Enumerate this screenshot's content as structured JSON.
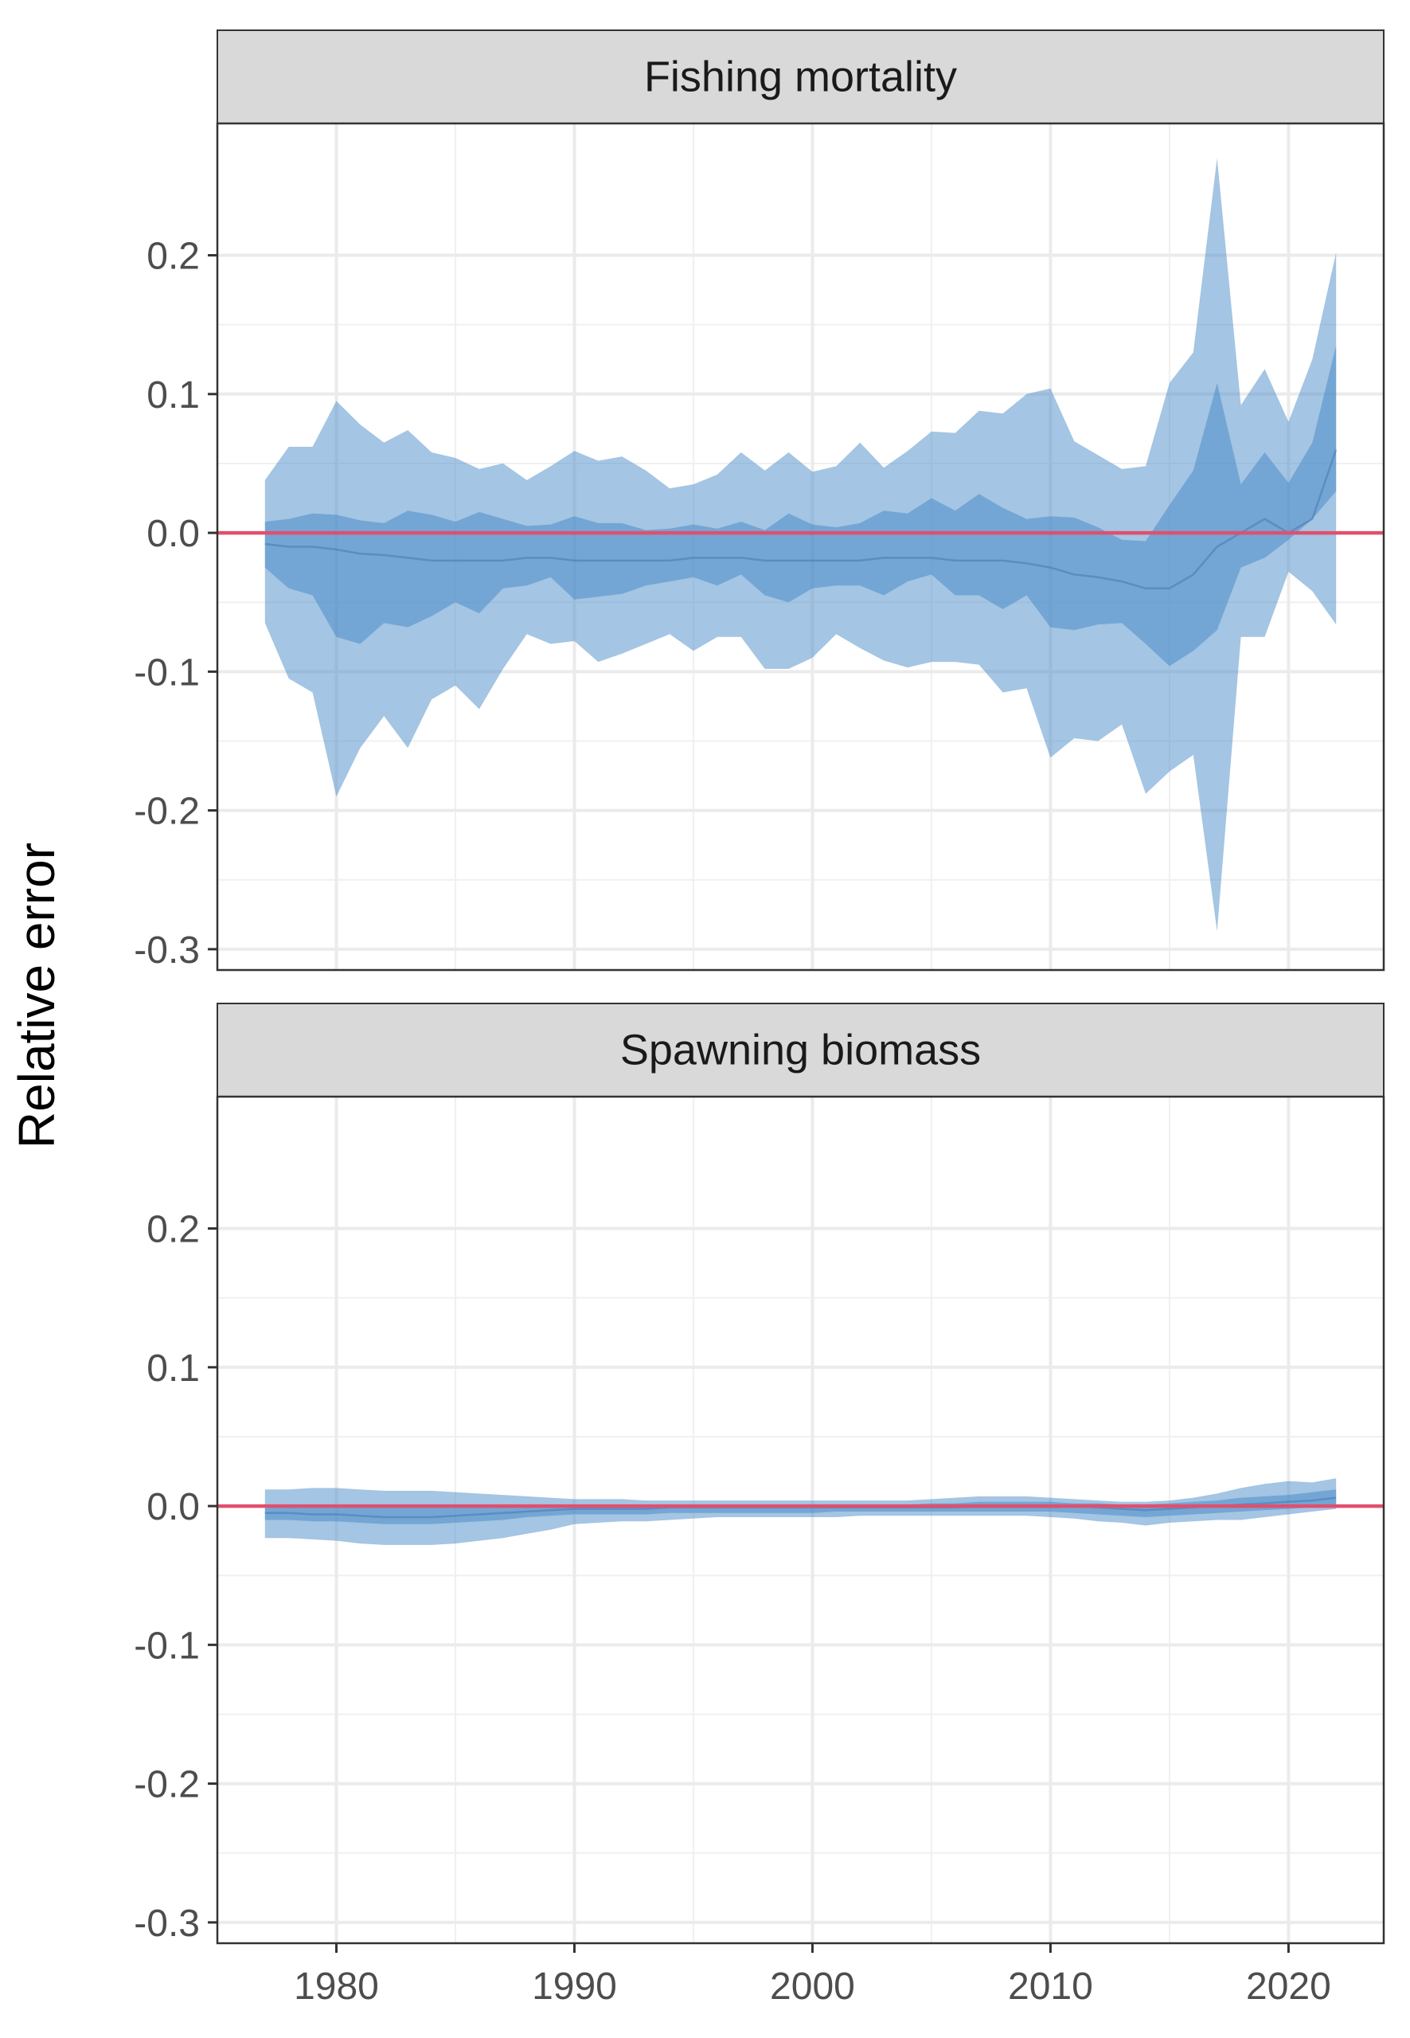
{
  "chart_data": {
    "type": "area",
    "ylabel": "Relative error",
    "xlabel": "",
    "x_ticks": [
      1980,
      1990,
      2000,
      2010,
      2020
    ],
    "y_ticks": [
      -0.3,
      -0.2,
      -0.1,
      0.0,
      0.1,
      0.2
    ],
    "y_tick_labels": [
      "-0.3",
      "-0.2",
      "-0.1",
      "0.0",
      "0.1",
      "0.2"
    ],
    "x_tick_labels": [
      "1980",
      "1990",
      "2000",
      "2010",
      "2020"
    ],
    "xlim": [
      1975,
      2024
    ],
    "ylim": [
      -0.315,
      0.295
    ],
    "grid": true,
    "reference_line": {
      "y": 0,
      "color": "#E0506E"
    },
    "band_color": "#4A8CC8",
    "x": [
      1977,
      1978,
      1979,
      1980,
      1981,
      1982,
      1983,
      1984,
      1985,
      1986,
      1987,
      1988,
      1989,
      1990,
      1991,
      1992,
      1993,
      1994,
      1995,
      1996,
      1997,
      1998,
      1999,
      2000,
      2001,
      2002,
      2003,
      2004,
      2005,
      2006,
      2007,
      2008,
      2009,
      2010,
      2011,
      2012,
      2013,
      2014,
      2015,
      2016,
      2017,
      2018,
      2019,
      2020,
      2021,
      2022
    ],
    "panels": [
      {
        "title": "Fishing mortality",
        "median": [
          -0.008,
          -0.01,
          -0.01,
          -0.012,
          -0.015,
          -0.016,
          -0.018,
          -0.02,
          -0.02,
          -0.02,
          -0.02,
          -0.018,
          -0.018,
          -0.02,
          -0.02,
          -0.02,
          -0.02,
          -0.02,
          -0.018,
          -0.018,
          -0.018,
          -0.02,
          -0.02,
          -0.02,
          -0.02,
          -0.02,
          -0.018,
          -0.018,
          -0.018,
          -0.02,
          -0.02,
          -0.02,
          -0.022,
          -0.025,
          -0.03,
          -0.032,
          -0.035,
          -0.04,
          -0.04,
          -0.03,
          -0.01,
          0.0,
          0.01,
          0.0,
          0.01,
          0.06
        ],
        "inner_lower": [
          -0.025,
          -0.04,
          -0.045,
          -0.075,
          -0.08,
          -0.065,
          -0.068,
          -0.06,
          -0.05,
          -0.058,
          -0.04,
          -0.038,
          -0.032,
          -0.048,
          -0.046,
          -0.044,
          -0.038,
          -0.035,
          -0.032,
          -0.038,
          -0.03,
          -0.045,
          -0.05,
          -0.04,
          -0.038,
          -0.038,
          -0.045,
          -0.035,
          -0.03,
          -0.045,
          -0.045,
          -0.055,
          -0.045,
          -0.068,
          -0.07,
          -0.066,
          -0.065,
          -0.08,
          -0.096,
          -0.085,
          -0.07,
          -0.025,
          -0.018,
          -0.005,
          0.01,
          0.03
        ],
        "inner_upper": [
          0.008,
          0.01,
          0.014,
          0.013,
          0.009,
          0.007,
          0.016,
          0.013,
          0.008,
          0.015,
          0.01,
          0.005,
          0.006,
          0.012,
          0.007,
          0.007,
          0.002,
          0.003,
          0.006,
          0.003,
          0.008,
          0.002,
          0.014,
          0.006,
          0.004,
          0.007,
          0.016,
          0.014,
          0.025,
          0.016,
          0.028,
          0.018,
          0.01,
          0.012,
          0.011,
          0.004,
          -0.005,
          -0.006,
          0.02,
          0.045,
          0.108,
          0.035,
          0.058,
          0.036,
          0.065,
          0.135
        ],
        "outer_lower": [
          -0.065,
          -0.105,
          -0.115,
          -0.19,
          -0.155,
          -0.132,
          -0.155,
          -0.12,
          -0.11,
          -0.127,
          -0.098,
          -0.073,
          -0.08,
          -0.078,
          -0.093,
          -0.087,
          -0.08,
          -0.073,
          -0.085,
          -0.075,
          -0.075,
          -0.098,
          -0.098,
          -0.09,
          -0.073,
          -0.083,
          -0.092,
          -0.097,
          -0.093,
          -0.093,
          -0.095,
          -0.115,
          -0.112,
          -0.162,
          -0.148,
          -0.15,
          -0.138,
          -0.188,
          -0.172,
          -0.16,
          -0.287,
          -0.075,
          -0.075,
          -0.028,
          -0.042,
          -0.066
        ],
        "outer_upper": [
          0.038,
          0.062,
          0.062,
          0.095,
          0.078,
          0.065,
          0.074,
          0.058,
          0.054,
          0.046,
          0.05,
          0.038,
          0.048,
          0.059,
          0.052,
          0.055,
          0.045,
          0.032,
          0.035,
          0.042,
          0.058,
          0.045,
          0.058,
          0.044,
          0.048,
          0.065,
          0.047,
          0.059,
          0.073,
          0.072,
          0.088,
          0.086,
          0.1,
          0.104,
          0.066,
          0.056,
          0.046,
          0.048,
          0.108,
          0.13,
          0.27,
          0.092,
          0.118,
          0.08,
          0.125,
          0.202
        ]
      },
      {
        "title": "Spawning biomass",
        "median": [
          -0.005,
          -0.005,
          -0.006,
          -0.006,
          -0.007,
          -0.008,
          -0.008,
          -0.008,
          -0.007,
          -0.006,
          -0.005,
          -0.004,
          -0.003,
          -0.002,
          -0.002,
          -0.002,
          -0.002,
          -0.001,
          -0.001,
          -0.001,
          -0.001,
          -0.001,
          -0.001,
          -0.001,
          -0.001,
          -0.001,
          -0.001,
          -0.001,
          -0.001,
          -0.001,
          0.0,
          0.0,
          0.0,
          0.0,
          0.0,
          -0.001,
          -0.002,
          -0.003,
          -0.002,
          -0.001,
          0.0,
          0.001,
          0.002,
          0.003,
          0.004,
          0.006
        ],
        "inner_lower": [
          -0.01,
          -0.01,
          -0.011,
          -0.011,
          -0.012,
          -0.013,
          -0.013,
          -0.013,
          -0.012,
          -0.011,
          -0.01,
          -0.008,
          -0.007,
          -0.006,
          -0.006,
          -0.006,
          -0.006,
          -0.005,
          -0.005,
          -0.005,
          -0.005,
          -0.005,
          -0.005,
          -0.005,
          -0.004,
          -0.004,
          -0.004,
          -0.004,
          -0.004,
          -0.004,
          -0.004,
          -0.004,
          -0.004,
          -0.004,
          -0.005,
          -0.006,
          -0.007,
          -0.008,
          -0.007,
          -0.006,
          -0.005,
          -0.004,
          -0.003,
          -0.002,
          -0.001,
          0.0
        ],
        "inner_upper": [
          0.001,
          0.001,
          0.001,
          0.001,
          0.0,
          0.0,
          0.0,
          0.0,
          0.0,
          0.0,
          0.0,
          0.0,
          0.0,
          0.001,
          0.001,
          0.001,
          0.001,
          0.001,
          0.001,
          0.001,
          0.001,
          0.001,
          0.001,
          0.001,
          0.001,
          0.001,
          0.001,
          0.001,
          0.002,
          0.002,
          0.003,
          0.003,
          0.003,
          0.003,
          0.002,
          0.002,
          0.001,
          0.001,
          0.002,
          0.003,
          0.004,
          0.006,
          0.007,
          0.008,
          0.01,
          0.012
        ],
        "outer_lower": [
          -0.023,
          -0.023,
          -0.024,
          -0.025,
          -0.027,
          -0.028,
          -0.028,
          -0.028,
          -0.027,
          -0.025,
          -0.023,
          -0.02,
          -0.017,
          -0.013,
          -0.012,
          -0.011,
          -0.011,
          -0.01,
          -0.009,
          -0.008,
          -0.008,
          -0.008,
          -0.008,
          -0.008,
          -0.008,
          -0.007,
          -0.007,
          -0.007,
          -0.007,
          -0.007,
          -0.007,
          -0.007,
          -0.007,
          -0.008,
          -0.009,
          -0.011,
          -0.012,
          -0.014,
          -0.012,
          -0.011,
          -0.01,
          -0.01,
          -0.008,
          -0.006,
          -0.004,
          -0.002
        ],
        "outer_upper": [
          0.012,
          0.012,
          0.013,
          0.013,
          0.012,
          0.011,
          0.011,
          0.011,
          0.01,
          0.009,
          0.008,
          0.007,
          0.006,
          0.005,
          0.005,
          0.005,
          0.004,
          0.004,
          0.004,
          0.004,
          0.004,
          0.004,
          0.004,
          0.004,
          0.004,
          0.004,
          0.004,
          0.004,
          0.005,
          0.006,
          0.007,
          0.007,
          0.007,
          0.006,
          0.005,
          0.004,
          0.003,
          0.003,
          0.004,
          0.006,
          0.009,
          0.013,
          0.016,
          0.018,
          0.017,
          0.02
        ]
      }
    ]
  }
}
